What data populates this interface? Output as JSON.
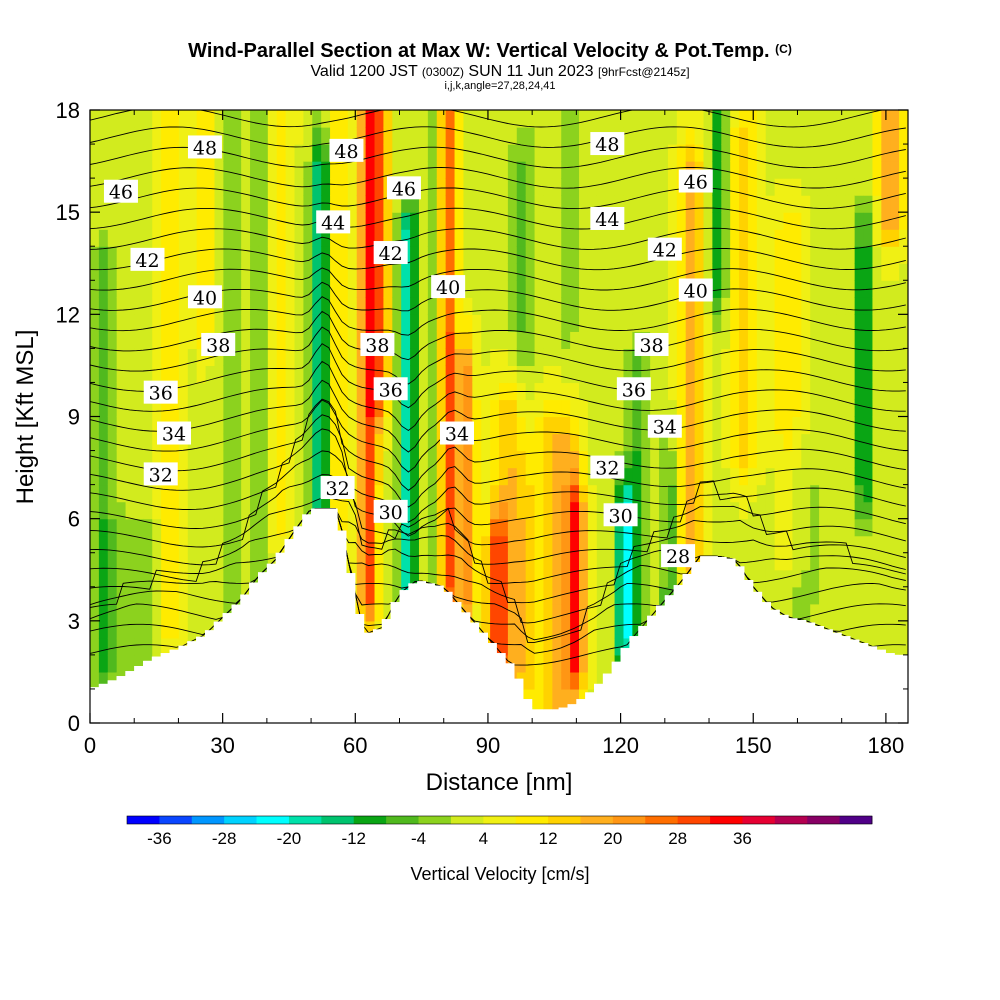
{
  "header": {
    "title_main": "Wind-Parallel Section at Max W: Vertical Velocity & Pot.Temp.",
    "title_mark": "(C)",
    "subtitle_a": "Valid 1200 JST",
    "subtitle_b": "(0300Z)",
    "subtitle_c": "SUN 11 Jun 2023",
    "subtitle_d": "[9hrFcst@2145z]",
    "subtitle_small": "i,j,k,angle=27,28,24,41"
  },
  "chart_data": {
    "type": "heatmap",
    "xlabel": "Distance [nm]",
    "ylabel": "Height [Kft MSL]",
    "xlim": [
      0,
      185
    ],
    "ylim": [
      0,
      18
    ],
    "x_ticks": [
      "0",
      "30",
      "60",
      "90",
      "120",
      "150",
      "180"
    ],
    "y_ticks": [
      "0",
      "3",
      "6",
      "9",
      "12",
      "15",
      "18"
    ],
    "colorbar": {
      "label": "Vertical Velocity [cm/s]",
      "tick_labels": [
        "-36",
        "-28",
        "-20",
        "-12",
        "-4",
        "4",
        "12",
        "20",
        "28",
        "36"
      ],
      "colors": [
        "#0000ff",
        "#0a46ff",
        "#0096ff",
        "#00d2ff",
        "#00ffff",
        "#00e1aa",
        "#00c36e",
        "#0aa514",
        "#50b91e",
        "#8cd21e",
        "#d2eb1e",
        "#f0f014",
        "#ffeb00",
        "#ffd200",
        "#ffaf1e",
        "#ff9614",
        "#ff6e00",
        "#ff4600",
        "#ff0000",
        "#e60032",
        "#b40050",
        "#870064",
        "#500087"
      ]
    },
    "terrain": [
      [
        0,
        1.0
      ],
      [
        6,
        1.3
      ],
      [
        10,
        1.6
      ],
      [
        14,
        1.9
      ],
      [
        20,
        2.2
      ],
      [
        26,
        2.6
      ],
      [
        30,
        3.1
      ],
      [
        34,
        3.6
      ],
      [
        38,
        4.3
      ],
      [
        42,
        4.8
      ],
      [
        46,
        5.6
      ],
      [
        50,
        6.3
      ],
      [
        56,
        6.3
      ],
      [
        58,
        5.0
      ],
      [
        62,
        2.6
      ],
      [
        66,
        2.8
      ],
      [
        70,
        3.8
      ],
      [
        74,
        4.2
      ],
      [
        80,
        4.0
      ],
      [
        84,
        3.4
      ],
      [
        88,
        2.8
      ],
      [
        92,
        2.2
      ],
      [
        96,
        1.6
      ],
      [
        98,
        1.0
      ],
      [
        100,
        0.4
      ],
      [
        106,
        0.4
      ],
      [
        110,
        0.6
      ],
      [
        114,
        1.0
      ],
      [
        118,
        1.6
      ],
      [
        122,
        2.4
      ],
      [
        126,
        3.0
      ],
      [
        130,
        3.6
      ],
      [
        134,
        4.2
      ],
      [
        138,
        4.9
      ],
      [
        142,
        4.9
      ],
      [
        146,
        4.8
      ],
      [
        150,
        4.0
      ],
      [
        154,
        3.4
      ],
      [
        158,
        3.1
      ],
      [
        162,
        3.0
      ],
      [
        166,
        2.8
      ],
      [
        170,
        2.6
      ],
      [
        174,
        2.4
      ],
      [
        178,
        2.2
      ],
      [
        182,
        2.0
      ],
      [
        185,
        2.0
      ]
    ],
    "theta_contours": {
      "units": "pot.temp",
      "labels": [
        {
          "value": "48",
          "x": 26,
          "y": 16.9
        },
        {
          "value": "48",
          "x": 58,
          "y": 16.8
        },
        {
          "value": "48",
          "x": 117,
          "y": 17.0
        },
        {
          "value": "46",
          "x": 7,
          "y": 15.6
        },
        {
          "value": "46",
          "x": 71,
          "y": 15.7
        },
        {
          "value": "46",
          "x": 137,
          "y": 15.9
        },
        {
          "value": "44",
          "x": 55,
          "y": 14.7
        },
        {
          "value": "44",
          "x": 117,
          "y": 14.8
        },
        {
          "value": "42",
          "x": 13,
          "y": 13.6
        },
        {
          "value": "42",
          "x": 68,
          "y": 13.8
        },
        {
          "value": "42",
          "x": 130,
          "y": 13.9
        },
        {
          "value": "40",
          "x": 26,
          "y": 12.5
        },
        {
          "value": "40",
          "x": 81,
          "y": 12.8
        },
        {
          "value": "40",
          "x": 137,
          "y": 12.7
        },
        {
          "value": "38",
          "x": 29,
          "y": 11.1
        },
        {
          "value": "38",
          "x": 65,
          "y": 11.1
        },
        {
          "value": "38",
          "x": 127,
          "y": 11.1
        },
        {
          "value": "36",
          "x": 16,
          "y": 9.7
        },
        {
          "value": "36",
          "x": 68,
          "y": 9.8
        },
        {
          "value": "36",
          "x": 123,
          "y": 9.8
        },
        {
          "value": "34",
          "x": 19,
          "y": 8.5
        },
        {
          "value": "34",
          "x": 83,
          "y": 8.5
        },
        {
          "value": "34",
          "x": 130,
          "y": 8.7
        },
        {
          "value": "32",
          "x": 16,
          "y": 7.3
        },
        {
          "value": "32",
          "x": 56,
          "y": 6.9
        },
        {
          "value": "32",
          "x": 117,
          "y": 7.5
        },
        {
          "value": "30",
          "x": 68,
          "y": 6.2
        },
        {
          "value": "30",
          "x": 120,
          "y": 6.1
        },
        {
          "value": "28",
          "x": 133,
          "y": 4.9
        }
      ]
    }
  }
}
